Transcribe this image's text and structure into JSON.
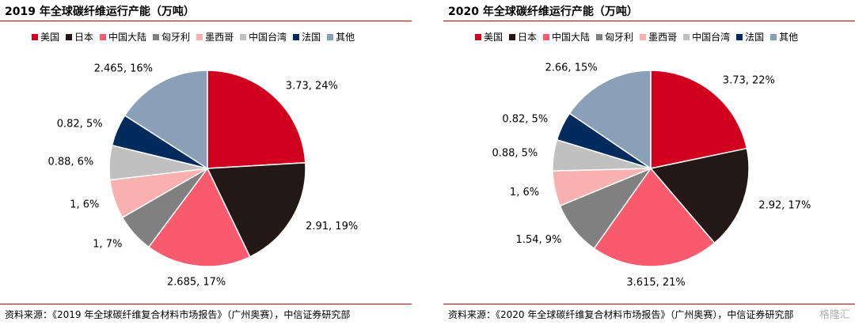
{
  "colors": {
    "美国": "#d1001f",
    "日本": "#231815",
    "中国大陆": "#f85a6e",
    "匈牙利": "#808080",
    "墨西哥": "#f9b0b0",
    "中国台湾": "#c0c0c0",
    "法国": "#002b5c",
    "其他": "#8aa0b8"
  },
  "watermark": "格隆汇",
  "panels": [
    {
      "title": "2019 年全球碳纤维运行产能（万吨）",
      "source": "资料来源：《2019 年全球碳纤维复合材料市场报告》（广州奥赛），中信证券研究部"
    },
    {
      "title": "2020 年全球碳纤维运行产能（万吨）",
      "source": "资料来源：《2020 年全球碳纤维复合材料市场报告》（广州奥赛），中信证券研究部"
    }
  ],
  "chart_data": [
    {
      "type": "pie",
      "title": "2019 年全球碳纤维运行产能（万吨）",
      "legend": [
        "美国",
        "日本",
        "中国大陆",
        "匈牙利",
        "墨西哥",
        "中国台湾",
        "法国",
        "其他"
      ],
      "legend_position": "top",
      "slices": [
        {
          "name": "美国",
          "value": 3.73,
          "label": "3.73, 24%"
        },
        {
          "name": "日本",
          "value": 2.91,
          "label": "2.91, 19%"
        },
        {
          "name": "中国大陆",
          "value": 2.685,
          "label": "2.685, 17%"
        },
        {
          "name": "匈牙利",
          "value": 1,
          "label": "1, 7%"
        },
        {
          "name": "墨西哥",
          "value": 1,
          "label": "1, 6%"
        },
        {
          "name": "中国台湾",
          "value": 0.88,
          "label": "0.88, 6%"
        },
        {
          "name": "法国",
          "value": 0.82,
          "label": "0.82, 5%"
        },
        {
          "name": "其他",
          "value": 2.465,
          "label": "2.465, 16%"
        }
      ]
    },
    {
      "type": "pie",
      "title": "2020 年全球碳纤维运行产能（万吨）",
      "legend": [
        "美国",
        "日本",
        "中国大陆",
        "匈牙利",
        "墨西哥",
        "中国台湾",
        "法国",
        "其他"
      ],
      "legend_position": "top",
      "slices": [
        {
          "name": "美国",
          "value": 3.73,
          "label": "3.73, 22%"
        },
        {
          "name": "日本",
          "value": 2.92,
          "label": "2.92, 17%"
        },
        {
          "name": "中国大陆",
          "value": 3.615,
          "label": "3.615, 21%"
        },
        {
          "name": "匈牙利",
          "value": 1.54,
          "label": "1.54, 9%"
        },
        {
          "name": "墨西哥",
          "value": 1,
          "label": "1, 6%"
        },
        {
          "name": "中国台湾",
          "value": 0.88,
          "label": "0.88, 5%"
        },
        {
          "name": "法国",
          "value": 0.82,
          "label": "0.82, 5%"
        },
        {
          "name": "其他",
          "value": 2.66,
          "label": "2.66, 15%"
        }
      ]
    }
  ]
}
